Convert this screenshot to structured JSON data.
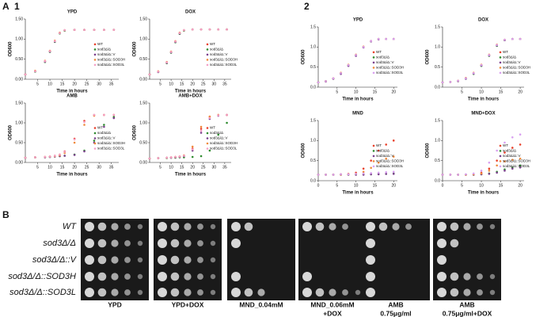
{
  "panel_labels": {
    "A": "A",
    "A_sub": "1",
    "A_sub2": "2",
    "B": "B"
  },
  "chart_data": [
    {
      "type": "line",
      "title": "YPD",
      "x_label": "Time in hours",
      "y_label": "OD600",
      "legend": "right",
      "xlim": [
        0,
        38
      ],
      "xticks": [
        5,
        10,
        15,
        20,
        25,
        30,
        35
      ],
      "ylim": [
        0,
        1.5
      ],
      "yticks": [
        {
          "value": 0,
          "label": "0.00"
        },
        {
          "value": 0.5,
          "label": "0.50"
        },
        {
          "value": 1,
          "label": "1.00"
        },
        {
          "value": 1.5,
          "label": "1.50"
        }
      ],
      "x": [
        0,
        4,
        8,
        10,
        12,
        14,
        16,
        20,
        24,
        28,
        32,
        36
      ],
      "series": [
        {
          "name": "WT",
          "color": "#e8412c",
          "values": [
            0.12,
            0.2,
            0.45,
            0.7,
            0.95,
            1.15,
            1.22,
            1.23,
            1.23,
            1.23,
            1.23,
            1.23
          ]
        },
        {
          "name": "sod3Δ/Δ",
          "color": "#2e8b2e",
          "values": [
            0.12,
            0.19,
            0.43,
            0.68,
            0.93,
            1.14,
            1.21,
            1.23,
            1.23,
            1.23,
            1.23,
            1.23
          ]
        },
        {
          "name": "sod3Δ/Δ::V",
          "color": "#7b3f8c",
          "values": [
            0.12,
            0.2,
            0.44,
            0.69,
            0.94,
            1.15,
            1.22,
            1.23,
            1.23,
            1.23,
            1.23,
            1.23
          ]
        },
        {
          "name": "sod3Δ/Δ::SOD3H",
          "color": "#f08a3c",
          "values": [
            0.12,
            0.21,
            0.46,
            0.71,
            0.96,
            1.16,
            1.22,
            1.23,
            1.23,
            1.23,
            1.23,
            1.23
          ]
        },
        {
          "name": "sod3Δ/Δ::SOD3L",
          "color": "#f4a0c8",
          "values": [
            0.12,
            0.2,
            0.45,
            0.7,
            0.95,
            1.15,
            1.22,
            1.23,
            1.23,
            1.23,
            1.23,
            1.23
          ]
        }
      ]
    },
    {
      "type": "line",
      "title": "DOX",
      "x_label": "Time in hours",
      "y_label": "OD600",
      "legend": "right",
      "xlim": [
        0,
        38
      ],
      "xticks": [
        5,
        10,
        15,
        20,
        25,
        30,
        35
      ],
      "ylim": [
        0,
        1.5
      ],
      "yticks": [
        {
          "value": 0,
          "label": "0.00"
        },
        {
          "value": 0.5,
          "label": "0.50"
        },
        {
          "value": 1,
          "label": "1.00"
        },
        {
          "value": 1.5,
          "label": "1.50"
        }
      ],
      "x": [
        0,
        4,
        8,
        10,
        12,
        14,
        16,
        20,
        24,
        28,
        32,
        36
      ],
      "series": [
        {
          "name": "WT",
          "color": "#e8412c",
          "values": [
            0.12,
            0.19,
            0.42,
            0.68,
            0.94,
            1.15,
            1.22,
            1.24,
            1.24,
            1.24,
            1.24,
            1.24
          ]
        },
        {
          "name": "sod3Δ/Δ",
          "color": "#2e8b2e",
          "values": [
            0.12,
            0.18,
            0.4,
            0.66,
            0.92,
            1.13,
            1.21,
            1.24,
            1.24,
            1.24,
            1.24,
            1.24
          ]
        },
        {
          "name": "sod3Δ/Δ::V",
          "color": "#7b3f8c",
          "values": [
            0.12,
            0.18,
            0.41,
            0.67,
            0.93,
            1.14,
            1.22,
            1.24,
            1.24,
            1.24,
            1.24,
            1.24
          ]
        },
        {
          "name": "sod3Δ/Δ::SOD3H",
          "color": "#f08a3c",
          "values": [
            0.12,
            0.2,
            0.43,
            0.69,
            0.95,
            1.16,
            1.22,
            1.24,
            1.24,
            1.24,
            1.24,
            1.24
          ]
        },
        {
          "name": "sod3Δ/Δ::SOD3L",
          "color": "#f4a0c8",
          "values": [
            0.12,
            0.19,
            0.42,
            0.68,
            0.94,
            1.15,
            1.22,
            1.24,
            1.24,
            1.24,
            1.24,
            1.24
          ]
        }
      ]
    },
    {
      "type": "line",
      "title": "AMB",
      "x_label": "Time in hours",
      "y_label": "OD600",
      "legend": "right",
      "xlim": [
        0,
        38
      ],
      "xticks": [
        5,
        10,
        15,
        20,
        25,
        30,
        35
      ],
      "ylim": [
        0,
        1.5
      ],
      "yticks": [
        {
          "value": 0,
          "label": "0.00"
        },
        {
          "value": 0.5,
          "label": "0.50"
        },
        {
          "value": 1,
          "label": "1.00"
        },
        {
          "value": 1.5,
          "label": "1.50"
        }
      ],
      "x": [
        0,
        4,
        8,
        10,
        12,
        14,
        16,
        20,
        24,
        28,
        32,
        36
      ],
      "series": [
        {
          "name": "WT",
          "color": "#e8412c",
          "values": [
            0.12,
            0.13,
            0.14,
            0.15,
            0.17,
            0.2,
            0.28,
            0.6,
            1.05,
            1.2,
            1.2,
            1.2
          ]
        },
        {
          "name": "sod3Δ/Δ",
          "color": "#2e8b2e",
          "values": [
            0.12,
            0.13,
            0.13,
            0.14,
            0.15,
            0.16,
            0.17,
            0.2,
            0.3,
            0.55,
            0.95,
            1.15
          ]
        },
        {
          "name": "sod3Δ/Δ::V",
          "color": "#7b3f8c",
          "values": [
            0.12,
            0.13,
            0.13,
            0.14,
            0.15,
            0.16,
            0.17,
            0.19,
            0.28,
            0.5,
            0.9,
            1.12
          ]
        },
        {
          "name": "sod3Δ/Δ::SOD3H",
          "color": "#f08a3c",
          "values": [
            0.12,
            0.13,
            0.14,
            0.15,
            0.16,
            0.18,
            0.24,
            0.5,
            0.95,
            1.18,
            1.2,
            1.2
          ]
        },
        {
          "name": "sod3Δ/Δ::SOD3L",
          "color": "#f4a0c8",
          "values": [
            0.12,
            0.13,
            0.14,
            0.15,
            0.17,
            0.2,
            0.27,
            0.58,
            1.02,
            1.2,
            1.2,
            1.2
          ]
        }
      ]
    },
    {
      "type": "line",
      "title": "AMB+DOX",
      "x_label": "Time in hours",
      "y_label": "OD600",
      "legend": "right",
      "xlim": [
        0,
        38
      ],
      "xticks": [
        5,
        10,
        15,
        20,
        25,
        30,
        35
      ],
      "ylim": [
        0,
        1.5
      ],
      "yticks": [
        {
          "value": 0,
          "label": "0.00"
        },
        {
          "value": 0.5,
          "label": "0.50"
        },
        {
          "value": 1,
          "label": "1.00"
        },
        {
          "value": 1.5,
          "label": "1.50"
        }
      ],
      "x": [
        0,
        4,
        8,
        10,
        12,
        14,
        16,
        20,
        24,
        28,
        32,
        36
      ],
      "series": [
        {
          "name": "WT",
          "color": "#e8412c",
          "values": [
            0.1,
            0.11,
            0.12,
            0.13,
            0.14,
            0.15,
            0.17,
            0.35,
            0.85,
            1.15,
            1.2,
            1.2
          ]
        },
        {
          "name": "sod3Δ/Δ",
          "color": "#2e8b2e",
          "values": [
            0.1,
            0.11,
            0.11,
            0.12,
            0.12,
            0.13,
            0.13,
            0.14,
            0.16,
            0.3,
            0.7,
            1.0
          ]
        },
        {
          "name": "sod3Δ/Δ::V",
          "color": "#7b3f8c",
          "values": [
            0.1,
            0.11,
            0.12,
            0.12,
            0.13,
            0.14,
            0.16,
            0.3,
            0.75,
            1.1,
            1.18,
            1.2
          ]
        },
        {
          "name": "sod3Δ/Δ::SOD3H",
          "color": "#f08a3c",
          "values": [
            0.1,
            0.11,
            0.12,
            0.13,
            0.14,
            0.15,
            0.18,
            0.4,
            0.9,
            1.16,
            1.2,
            1.2
          ]
        },
        {
          "name": "sod3Δ/Δ::SOD3L",
          "color": "#f4a0c8",
          "values": [
            0.1,
            0.11,
            0.12,
            0.13,
            0.14,
            0.15,
            0.17,
            0.33,
            0.8,
            1.12,
            1.19,
            1.2
          ]
        }
      ]
    },
    {
      "type": "line",
      "title": "YPD",
      "x_label": "Time in hours",
      "y_label": "OD600",
      "legend": "right",
      "xlim": [
        0,
        21
      ],
      "xticks": [
        5,
        10,
        15,
        20
      ],
      "ylim": [
        0,
        1.5
      ],
      "yticks": [
        {
          "value": 0,
          "label": "0.0"
        },
        {
          "value": 0.5,
          "label": "0.5"
        },
        {
          "value": 1,
          "label": "1.0"
        },
        {
          "value": 1.5,
          "label": "1.5"
        }
      ],
      "x": [
        0,
        2,
        4,
        6,
        8,
        10,
        12,
        14,
        16,
        18,
        20
      ],
      "series": [
        {
          "name": "WT",
          "color": "#e8412c",
          "values": [
            0.12,
            0.15,
            0.22,
            0.35,
            0.55,
            0.8,
            1.0,
            1.15,
            1.2,
            1.2,
            1.2
          ]
        },
        {
          "name": "sod3Δ/Δ",
          "color": "#2e8b2e",
          "values": [
            0.12,
            0.15,
            0.21,
            0.34,
            0.54,
            0.79,
            1.0,
            1.14,
            1.2,
            1.2,
            1.2
          ]
        },
        {
          "name": "sod3Δ/Δ::V",
          "color": "#7b3f8c",
          "values": [
            0.12,
            0.14,
            0.21,
            0.33,
            0.53,
            0.78,
            0.99,
            1.14,
            1.19,
            1.2,
            1.2
          ]
        },
        {
          "name": "sod3Δ/Δ::SOD3H",
          "color": "#f08a3c",
          "values": [
            0.12,
            0.15,
            0.22,
            0.36,
            0.56,
            0.81,
            1.01,
            1.15,
            1.2,
            1.2,
            1.2
          ]
        },
        {
          "name": "sod3Δ/Δ::SOD3L",
          "color": "#d9a0f0",
          "values": [
            0.12,
            0.15,
            0.22,
            0.35,
            0.55,
            0.8,
            1.0,
            1.15,
            1.2,
            1.2,
            1.2
          ]
        }
      ]
    },
    {
      "type": "line",
      "title": "DOX",
      "x_label": "Time in hours",
      "y_label": "OD600",
      "legend": "right",
      "xlim": [
        0,
        21
      ],
      "xticks": [
        5,
        10,
        15,
        20
      ],
      "ylim": [
        0,
        1.5
      ],
      "yticks": [
        {
          "value": 0,
          "label": "0.0"
        },
        {
          "value": 0.5,
          "label": "0.5"
        },
        {
          "value": 1,
          "label": "1.0"
        },
        {
          "value": 1.5,
          "label": "1.5"
        }
      ],
      "x": [
        0,
        2,
        4,
        6,
        8,
        10,
        12,
        14,
        16,
        18,
        20
      ],
      "series": [
        {
          "name": "WT",
          "color": "#e8412c",
          "values": [
            0.12,
            0.13,
            0.16,
            0.22,
            0.35,
            0.55,
            0.8,
            1.05,
            1.18,
            1.2,
            1.2
          ]
        },
        {
          "name": "sod3Δ/Δ",
          "color": "#2e8b2e",
          "values": [
            0.12,
            0.13,
            0.15,
            0.21,
            0.33,
            0.53,
            0.78,
            1.03,
            1.17,
            1.2,
            1.2
          ]
        },
        {
          "name": "sod3Δ/Δ::V",
          "color": "#7b3f8c",
          "values": [
            0.12,
            0.13,
            0.15,
            0.21,
            0.34,
            0.54,
            0.79,
            1.04,
            1.17,
            1.2,
            1.2
          ]
        },
        {
          "name": "sod3Δ/Δ::SOD3H",
          "color": "#f08a3c",
          "values": [
            0.12,
            0.13,
            0.16,
            0.23,
            0.36,
            0.56,
            0.81,
            1.06,
            1.18,
            1.2,
            1.2
          ]
        },
        {
          "name": "sod3Δ/Δ::SOD3L",
          "color": "#d9a0f0",
          "values": [
            0.12,
            0.13,
            0.16,
            0.22,
            0.35,
            0.55,
            0.8,
            1.05,
            1.18,
            1.2,
            1.2
          ]
        }
      ]
    },
    {
      "type": "line",
      "title": "MND",
      "x_label": "Time in hours",
      "y_label": "OD600",
      "legend": "right",
      "xlim": [
        0,
        21
      ],
      "xticks": [
        0,
        5,
        10,
        15,
        20
      ],
      "ylim": [
        0,
        1.5
      ],
      "yticks": [
        {
          "value": 0,
          "label": "0.0"
        },
        {
          "value": 0.5,
          "label": "0.5"
        },
        {
          "value": 1,
          "label": "1.0"
        },
        {
          "value": 1.5,
          "label": "1.5"
        }
      ],
      "x": [
        0,
        2,
        4,
        6,
        8,
        10,
        12,
        14,
        16,
        18,
        20
      ],
      "series": [
        {
          "name": "WT",
          "color": "#e8412c",
          "values": [
            0.15,
            0.15,
            0.15,
            0.16,
            0.17,
            0.2,
            0.3,
            0.5,
            0.75,
            0.9,
            1.0
          ]
        },
        {
          "name": "sod3Δ/Δ",
          "color": "#2e8b2e",
          "values": [
            0.15,
            0.15,
            0.15,
            0.15,
            0.15,
            0.15,
            0.16,
            0.16,
            0.17,
            0.17,
            0.18
          ]
        },
        {
          "name": "sod3Δ/Δ::V",
          "color": "#7b3f8c",
          "values": [
            0.15,
            0.15,
            0.15,
            0.15,
            0.15,
            0.15,
            0.15,
            0.16,
            0.16,
            0.17,
            0.17
          ]
        },
        {
          "name": "sod3Δ/Δ::SOD3H",
          "color": "#f08a3c",
          "values": [
            0.15,
            0.15,
            0.15,
            0.15,
            0.16,
            0.17,
            0.22,
            0.32,
            0.45,
            0.55,
            0.6
          ]
        },
        {
          "name": "sod3Δ/Δ::SOD3L",
          "color": "#d9a0f0",
          "values": [
            0.15,
            0.15,
            0.15,
            0.16,
            0.16,
            0.17,
            0.18,
            0.19,
            0.2,
            0.21,
            0.22
          ]
        }
      ]
    },
    {
      "type": "line",
      "title": "MND+DOX",
      "x_label": "Time in hours",
      "y_label": "OD600",
      "legend": "right",
      "xlim": [
        0,
        21
      ],
      "xticks": [
        0,
        5,
        10,
        15,
        20
      ],
      "ylim": [
        0,
        1.5
      ],
      "yticks": [
        {
          "value": 0,
          "label": "0.0"
        },
        {
          "value": 0.5,
          "label": "0.5"
        },
        {
          "value": 1,
          "label": "1.0"
        },
        {
          "value": 1.5,
          "label": "1.5"
        }
      ],
      "x": [
        0,
        2,
        4,
        6,
        8,
        10,
        12,
        14,
        16,
        18,
        20
      ],
      "series": [
        {
          "name": "WT",
          "color": "#e8412c",
          "values": [
            0.15,
            0.15,
            0.15,
            0.15,
            0.16,
            0.2,
            0.3,
            0.5,
            0.7,
            0.82,
            0.9
          ]
        },
        {
          "name": "sod3Δ/Δ",
          "color": "#2e8b2e",
          "values": [
            0.15,
            0.15,
            0.15,
            0.15,
            0.15,
            0.16,
            0.18,
            0.22,
            0.28,
            0.33,
            0.38
          ]
        },
        {
          "name": "sod3Δ/Δ::V",
          "color": "#7b3f8c",
          "values": [
            0.15,
            0.15,
            0.15,
            0.15,
            0.15,
            0.16,
            0.17,
            0.2,
            0.25,
            0.3,
            0.33
          ]
        },
        {
          "name": "sod3Δ/Δ::SOD3H",
          "color": "#f08a3c",
          "values": [
            0.15,
            0.15,
            0.15,
            0.15,
            0.16,
            0.18,
            0.25,
            0.38,
            0.48,
            0.52,
            0.55
          ]
        },
        {
          "name": "sod3Δ/Δ::SOD3L",
          "color": "#d9a0f0",
          "values": [
            0.15,
            0.15,
            0.15,
            0.16,
            0.18,
            0.25,
            0.45,
            0.75,
            0.95,
            1.08,
            1.15
          ]
        }
      ]
    }
  ],
  "spot_assay": {
    "strains": [
      "WT",
      "sod3Δ/Δ",
      "sod3Δ/Δ::V",
      "sod3Δ/Δ::SOD3H",
      "sod3Δ/Δ::SOD3L"
    ],
    "conditions": [
      [
        "YPD"
      ],
      [
        "YPD+DOX"
      ],
      [
        "MND_0.04mM"
      ],
      [
        "MND_0.06mM",
        "+DOX"
      ],
      [
        "AMB",
        "0.75μg/ml"
      ],
      [
        "AMB",
        "0.75μg/ml+DOX"
      ]
    ]
  }
}
